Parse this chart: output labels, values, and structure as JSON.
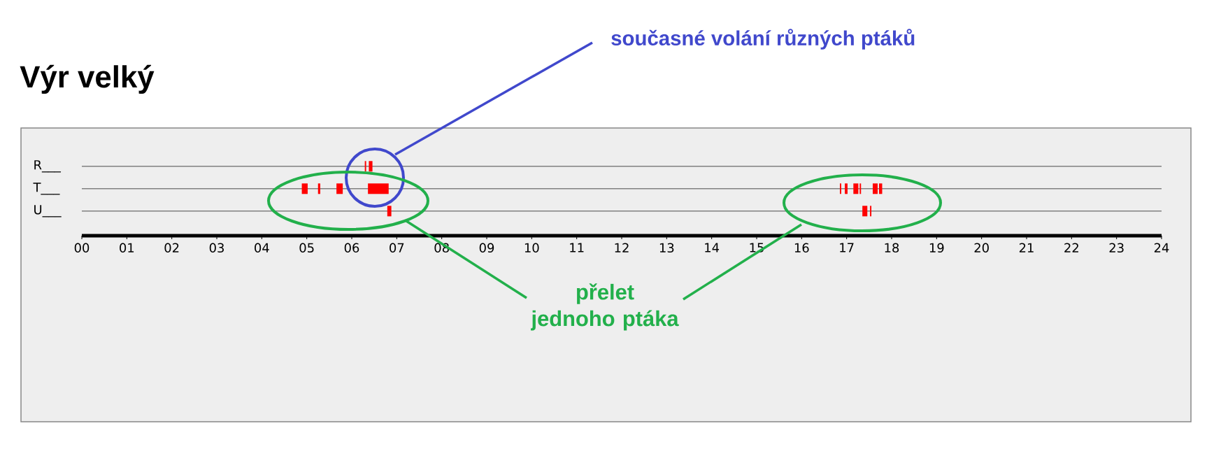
{
  "chart_data": {
    "type": "bar",
    "orientation": "horizontal",
    "title": "Výr velký",
    "categories": [
      "R___",
      "T___",
      "U___"
    ],
    "xlim": [
      0,
      24
    ],
    "xticks": [
      {
        "value": 0,
        "label": "00"
      },
      {
        "value": 1,
        "label": "01"
      },
      {
        "value": 2,
        "label": "02"
      },
      {
        "value": 3,
        "label": "03"
      },
      {
        "value": 4,
        "label": "04"
      },
      {
        "value": 5,
        "label": "05"
      },
      {
        "value": 6,
        "label": "06"
      },
      {
        "value": 7,
        "label": "07"
      },
      {
        "value": 8,
        "label": "08"
      },
      {
        "value": 9,
        "label": "09"
      },
      {
        "value": 10,
        "label": "10"
      },
      {
        "value": 11,
        "label": "11"
      },
      {
        "value": 12,
        "label": "12"
      },
      {
        "value": 13,
        "label": "13"
      },
      {
        "value": 14,
        "label": "14"
      },
      {
        "value": 15,
        "label": "15"
      },
      {
        "value": 16,
        "label": "16"
      },
      {
        "value": 17,
        "label": "17"
      },
      {
        "value": 18,
        "label": "18"
      },
      {
        "value": 19,
        "label": "19"
      },
      {
        "value": 20,
        "label": "20"
      },
      {
        "value": 21,
        "label": "21"
      },
      {
        "value": 22,
        "label": "22"
      },
      {
        "value": 23,
        "label": "23"
      },
      {
        "value": 24,
        "label": "24"
      }
    ],
    "grid": "y",
    "annotations": [
      "současné volání různých ptáků",
      "přelet jednoho ptáka"
    ],
    "series": [
      {
        "color": "#ff0000",
        "base": [
          6.29,
          4.89,
          6.79
        ],
        "values": [
          0.03,
          0.13,
          0.09
        ]
      },
      {
        "color": "#ff0000",
        "base": [
          6.38,
          5.25,
          17.35
        ],
        "values": [
          0.08,
          0.05,
          0.11
        ]
      },
      {
        "color": "#ff0000",
        "base": [
          null,
          5.66,
          17.52
        ],
        "values": [
          null,
          0.14,
          0.03
        ]
      },
      {
        "color": "#ff0000",
        "base": [
          null,
          6.36,
          null
        ],
        "values": [
          null,
          0.46,
          null
        ]
      },
      {
        "color": "#ff0000",
        "base": [
          null,
          16.85,
          null
        ],
        "values": [
          null,
          0.03,
          null
        ]
      },
      {
        "color": "#ff0000",
        "base": [
          null,
          16.96,
          null
        ],
        "values": [
          null,
          0.06,
          null
        ]
      },
      {
        "color": "#ff0000",
        "base": [
          null,
          17.15,
          null
        ],
        "values": [
          null,
          0.11,
          null
        ]
      },
      {
        "color": "#ff0000",
        "base": [
          null,
          17.29,
          null
        ],
        "values": [
          null,
          0.03,
          null
        ]
      },
      {
        "color": "#ff0000",
        "base": [
          null,
          17.58,
          null
        ],
        "values": [
          null,
          0.11,
          null
        ]
      },
      {
        "color": "#ff0000",
        "base": [
          null,
          17.72,
          null
        ],
        "values": [
          null,
          0.07,
          null
        ]
      }
    ]
  }
}
